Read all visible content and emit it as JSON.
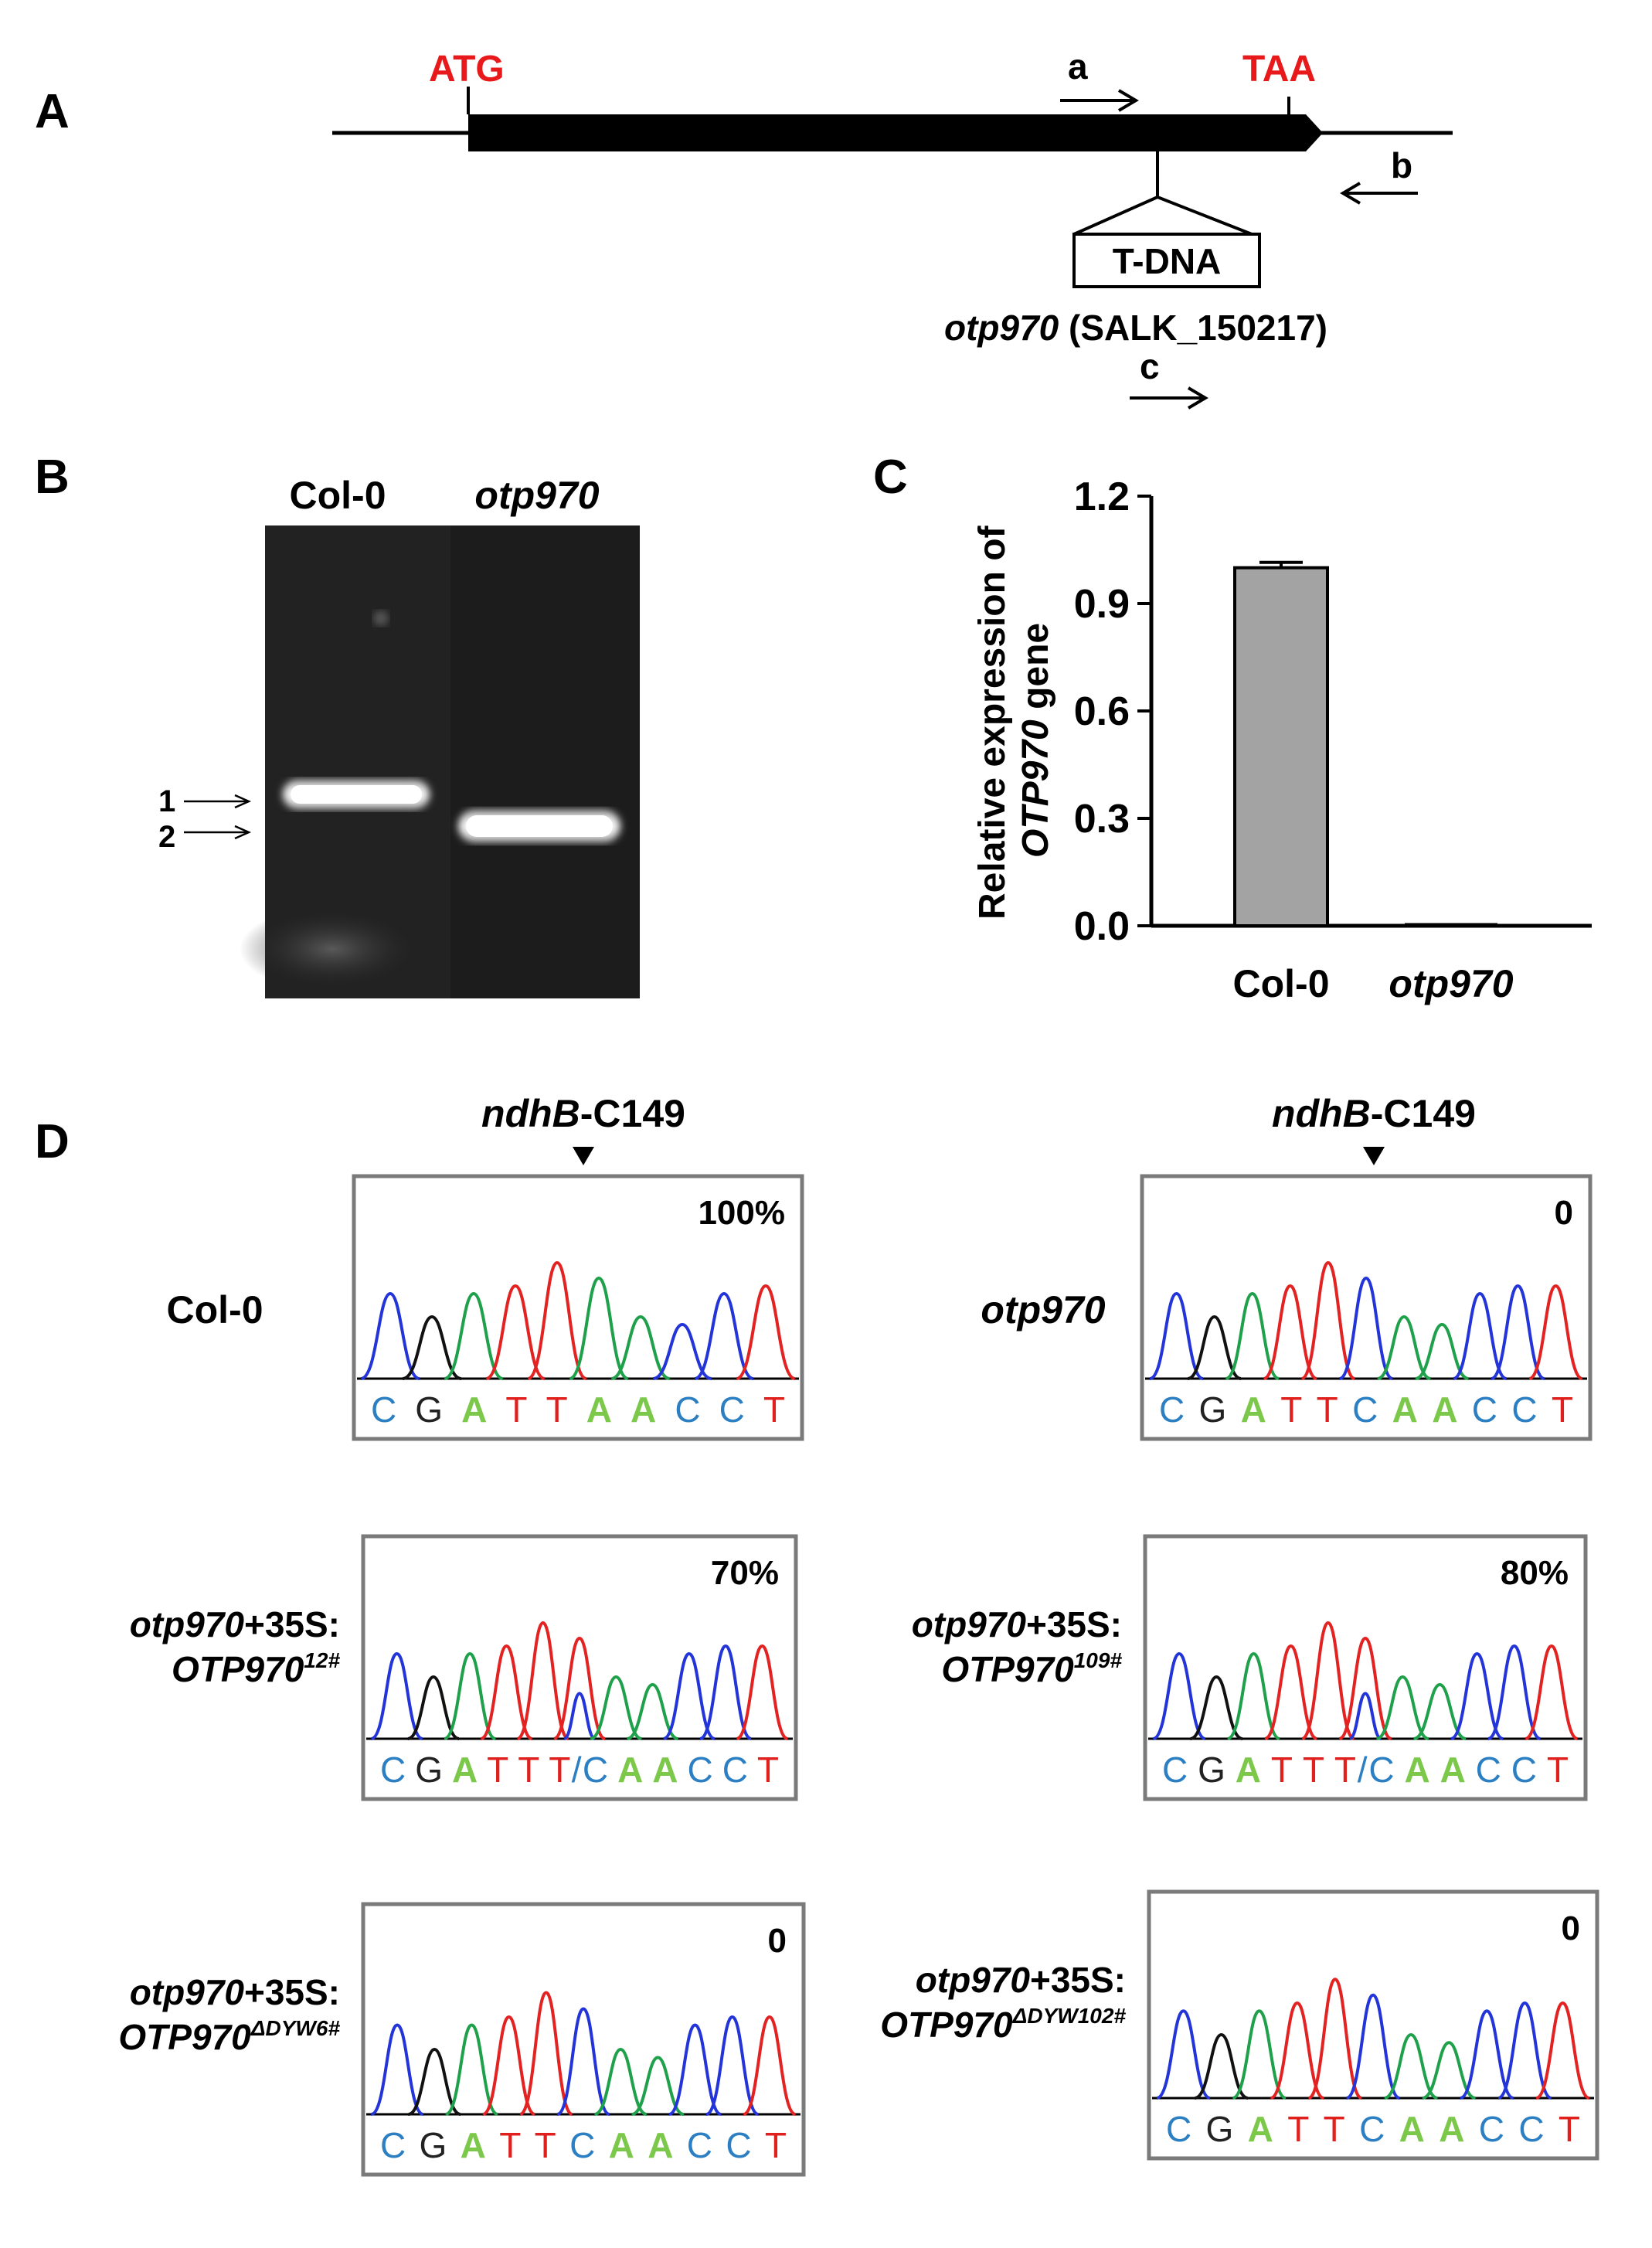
{
  "panels": {
    "a": "A",
    "b": "B",
    "c": "C",
    "d": "D"
  },
  "panel_a": {
    "start_codon": "ATG",
    "stop_codon": "TAA",
    "primer_a": "a",
    "primer_b": "b",
    "primer_c": "c",
    "insert": "T-DNA",
    "allele": "otp970",
    "allele_line": " (SALK_150217)",
    "codon_color": "#e8191b"
  },
  "panel_b": {
    "lane1": "Col-0",
    "lane2": "otp970",
    "band1": "1",
    "band2": "2"
  },
  "panel_c": {
    "ylabel_line1": "Relative expression of",
    "ylabel_gene": "OTP970",
    "ylabel_suffix": " gene",
    "chart_data": {
      "type": "bar",
      "categories": [
        "Col-0",
        "otp970"
      ],
      "values": [
        1.0,
        0.0
      ],
      "errors": [
        0.015,
        0.0
      ],
      "ylim": [
        0.0,
        1.2
      ],
      "yticks": [
        "0.0",
        "0.3",
        "0.6",
        "0.9",
        "1.2"
      ],
      "bar_color": "#a3a3a3"
    }
  },
  "panel_d": {
    "site_gene": "ndhB",
    "site_pos": "-C149",
    "colors": {
      "C": "#2b7fc2",
      "G": "#222222",
      "A": "#7cc84a",
      "T": "#e0201d",
      "peakA": "#1fa04a",
      "peakC": "#2335d8",
      "peakG": "#111111",
      "peakT": "#e32222"
    },
    "traces": [
      {
        "label1": "Col-0",
        "label2": "",
        "percent": "100%",
        "bases": [
          "C",
          "G",
          "A",
          "T",
          "T",
          "A",
          "A",
          "C",
          "C",
          "T"
        ]
      },
      {
        "label1": "otp970",
        "label2": "",
        "percent": "0",
        "bases": [
          "C",
          "G",
          "A",
          "T",
          "T",
          "C",
          "A",
          "A",
          "C",
          "C",
          "T"
        ]
      },
      {
        "label1_gene": "otp970",
        "label1_rest": "+35S:",
        "label2_gene": "OTP970",
        "label2_sup": "12#",
        "percent": "70%",
        "bases": [
          "C",
          "G",
          "A",
          "T",
          "T",
          "T/C",
          "A",
          "A",
          "C",
          "C",
          "T"
        ]
      },
      {
        "label1_gene": "otp970",
        "label1_rest": "+35S:",
        "label2_gene": "OTP970",
        "label2_sup": "109#",
        "percent": "80%",
        "bases": [
          "C",
          "G",
          "A",
          "T",
          "T",
          "T/C",
          "A",
          "A",
          "C",
          "C",
          "T"
        ]
      },
      {
        "label1_gene": "otp970",
        "label1_rest": "+35S:",
        "label2_gene": "OTP970",
        "label2_sup": "ΔDYW6#",
        "percent": "0",
        "bases": [
          "C",
          "G",
          "A",
          "T",
          "T",
          "C",
          "A",
          "A",
          "C",
          "C",
          "T"
        ]
      },
      {
        "label1_gene": "otp970",
        "label1_rest": "+35S:",
        "label2_gene": "OTP970",
        "label2_sup": "ΔDYW102#",
        "percent": "0",
        "bases": [
          "C",
          "G",
          "A",
          "T",
          "T",
          "C",
          "A",
          "A",
          "C",
          "C",
          "T"
        ]
      }
    ]
  }
}
